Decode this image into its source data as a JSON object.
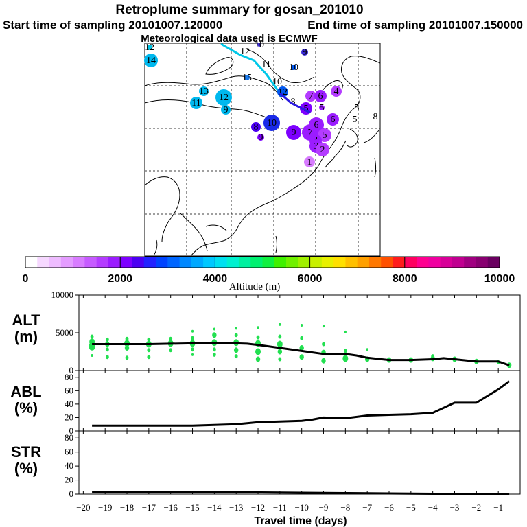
{
  "title": "Retroplume summary for gosan_201010",
  "start_label": "Start time of sampling 20101007.120000",
  "end_label": "End time of sampling 20101007.150000",
  "met_label": "Meteorological data used is ECMWF",
  "colors": {
    "trajectory": "#00c8e8",
    "mean_line": "#000000",
    "green_dots": "#22e050",
    "coast": "#000000"
  },
  "colorbar": {
    "label": "Altitude (m)",
    "ticks": [
      "0",
      "2000",
      "4000",
      "6000",
      "8000",
      "10000"
    ],
    "colors": [
      "#ffffff",
      "#f6d8ff",
      "#eebcff",
      "#e49cff",
      "#d87cff",
      "#c65bff",
      "#b43cff",
      "#9b1cff",
      "#7d00ff",
      "#4b00f2",
      "#2222ff",
      "#0044ff",
      "#0066ff",
      "#0088ff",
      "#00a8ff",
      "#00c8ff",
      "#00e0f0",
      "#00f0d0",
      "#00f0a0",
      "#00f070",
      "#10f040",
      "#40f000",
      "#70f000",
      "#a0f000",
      "#c8f000",
      "#e8f000",
      "#ffe000",
      "#ffc000",
      "#ffa000",
      "#ff7800",
      "#ff5000",
      "#ff1c1c",
      "#ff0060",
      "#ff0090",
      "#f000a0",
      "#d80098",
      "#c00090",
      "#a00080",
      "#880070",
      "#6a0060"
    ]
  },
  "map_points": [
    {
      "label": "12",
      "color": "#00c8e8",
      "r": 4
    },
    {
      "label": "14",
      "color": "#00b8ee",
      "r": 10
    },
    {
      "label": "13",
      "color": "#1a7cf0",
      "r": 5
    },
    {
      "label": "12",
      "color": "#00c8e8",
      "r": 0
    },
    {
      "label": "9",
      "color": "#3a2ad8",
      "r": 5
    },
    {
      "label": "10",
      "color": "#4030d8",
      "r": 3
    },
    {
      "label": "11",
      "color": "#00c8e8",
      "r": 0
    },
    {
      "label": "15",
      "color": "#1a7cf0",
      "r": 4
    },
    {
      "label": "10",
      "color": "#0058f0",
      "r": 4
    },
    {
      "label": "10",
      "color": "#0040ff",
      "r": 0
    },
    {
      "label": "13",
      "color": "#00b8ee",
      "r": 7
    },
    {
      "label": "12",
      "color": "#00b8ee",
      "r": 12
    },
    {
      "label": "11",
      "color": "#00b8ee",
      "r": 9
    },
    {
      "label": "9",
      "color": "#00b8ee",
      "r": 7
    },
    {
      "label": "12",
      "color": "#0058f0",
      "r": 8
    },
    {
      "label": "8",
      "color": "#0040ff",
      "r": 0
    },
    {
      "label": "7",
      "color": "#b43cff",
      "r": 8
    },
    {
      "label": "6",
      "color": "#9b1cff",
      "r": 9
    },
    {
      "label": "4",
      "color": "#b43cff",
      "r": 8
    },
    {
      "label": "5",
      "color": "#9b1cff",
      "r": 4
    },
    {
      "label": "5",
      "color": "#7d00ff",
      "r": 9
    },
    {
      "label": "6",
      "color": "#9b1cff",
      "r": 9
    },
    {
      "label": "10",
      "color": "#1a2ae8",
      "r": 12
    },
    {
      "label": "8",
      "color": "#4b00f2",
      "r": 7
    },
    {
      "label": "9",
      "color": "#7d00ff",
      "r": 5
    },
    {
      "label": "9",
      "color": "#7d00ff",
      "r": 11
    },
    {
      "label": "7",
      "color": "#9b1cff",
      "r": 12
    },
    {
      "label": "6",
      "color": "#9b1cff",
      "r": 11
    },
    {
      "label": "5",
      "color": "#b43cff",
      "r": 10
    },
    {
      "label": "4",
      "color": "#9b1cff",
      "r": 9
    },
    {
      "label": "3",
      "color": "#9b1cff",
      "r": 10
    },
    {
      "label": "2",
      "color": "#b43cff",
      "r": 10
    },
    {
      "label": "1",
      "color": "#d87cff",
      "r": 8
    },
    {
      "label": "5",
      "color": "#7d00ff",
      "r": 0
    },
    {
      "label": "5",
      "color": "#7d00ff",
      "r": 0
    },
    {
      "label": "8",
      "color": "#7d00ff",
      "r": 0
    }
  ],
  "chart_data": [
    {
      "type": "scatter+line",
      "panel_label_1": "ALT",
      "panel_label_2": "(m)",
      "ylim": [
        0,
        10000
      ],
      "ytick_labels": [
        "0",
        "5000",
        "10000"
      ],
      "xlim": [
        -20.2,
        0
      ],
      "mean_line": {
        "x": [
          -19.6,
          -19,
          -18,
          -17,
          -16,
          -15,
          -14,
          -13,
          -12.5,
          -12,
          -11,
          -10,
          -9.5,
          -9,
          -8,
          -7.5,
          -7,
          -6,
          -5,
          -4,
          -3.5,
          -3,
          -2,
          -1,
          -0.5
        ],
        "y": [
          3500,
          3500,
          3500,
          3500,
          3550,
          3600,
          3600,
          3600,
          3550,
          3400,
          3000,
          2600,
          2400,
          2200,
          2200,
          2000,
          1700,
          1400,
          1400,
          1500,
          1650,
          1500,
          1200,
          1200,
          700
        ]
      },
      "green_points": [
        {
          "x": -19.6,
          "y": 4500,
          "s": 3
        },
        {
          "x": -19.6,
          "y": 3800,
          "s": 5
        },
        {
          "x": -19.6,
          "y": 3200,
          "s": 6
        },
        {
          "x": -19.6,
          "y": 2000,
          "s": 2
        },
        {
          "x": -18.9,
          "y": 4100,
          "s": 3
        },
        {
          "x": -18.9,
          "y": 3500,
          "s": 4
        },
        {
          "x": -18.9,
          "y": 2800,
          "s": 3
        },
        {
          "x": -18.9,
          "y": 1800,
          "s": 3
        },
        {
          "x": -18,
          "y": 4200,
          "s": 3
        },
        {
          "x": -18,
          "y": 3600,
          "s": 5
        },
        {
          "x": -18,
          "y": 3000,
          "s": 4
        },
        {
          "x": -18,
          "y": 1700,
          "s": 3
        },
        {
          "x": -17,
          "y": 4100,
          "s": 3
        },
        {
          "x": -17,
          "y": 3500,
          "s": 5
        },
        {
          "x": -17,
          "y": 2700,
          "s": 3
        },
        {
          "x": -17,
          "y": 1800,
          "s": 3
        },
        {
          "x": -16,
          "y": 4200,
          "s": 3
        },
        {
          "x": -16,
          "y": 3600,
          "s": 5
        },
        {
          "x": -16,
          "y": 2700,
          "s": 3
        },
        {
          "x": -15,
          "y": 5200,
          "s": 2
        },
        {
          "x": -15,
          "y": 4300,
          "s": 3
        },
        {
          "x": -15,
          "y": 3600,
          "s": 5
        },
        {
          "x": -15,
          "y": 2800,
          "s": 3
        },
        {
          "x": -15,
          "y": 2100,
          "s": 2
        },
        {
          "x": -14,
          "y": 5500,
          "s": 2
        },
        {
          "x": -14,
          "y": 4700,
          "s": 4
        },
        {
          "x": -14,
          "y": 3700,
          "s": 5
        },
        {
          "x": -14,
          "y": 2800,
          "s": 3
        },
        {
          "x": -14,
          "y": 2100,
          "s": 3
        },
        {
          "x": -13,
          "y": 5600,
          "s": 2
        },
        {
          "x": -13,
          "y": 4700,
          "s": 3
        },
        {
          "x": -13,
          "y": 3700,
          "s": 5
        },
        {
          "x": -13,
          "y": 2700,
          "s": 4
        },
        {
          "x": -13,
          "y": 1900,
          "s": 3
        },
        {
          "x": -12,
          "y": 5700,
          "s": 2
        },
        {
          "x": -12,
          "y": 4400,
          "s": 3
        },
        {
          "x": -12,
          "y": 3600,
          "s": 5
        },
        {
          "x": -12,
          "y": 2500,
          "s": 5
        },
        {
          "x": -12,
          "y": 1500,
          "s": 4
        },
        {
          "x": -11,
          "y": 6100,
          "s": 2
        },
        {
          "x": -11,
          "y": 4500,
          "s": 3
        },
        {
          "x": -11,
          "y": 3500,
          "s": 5
        },
        {
          "x": -11,
          "y": 2500,
          "s": 4
        },
        {
          "x": -11,
          "y": 1500,
          "s": 3
        },
        {
          "x": -10,
          "y": 6000,
          "s": 2
        },
        {
          "x": -10,
          "y": 4300,
          "s": 3
        },
        {
          "x": -10,
          "y": 3000,
          "s": 4
        },
        {
          "x": -10,
          "y": 1800,
          "s": 4
        },
        {
          "x": -9,
          "y": 5900,
          "s": 2
        },
        {
          "x": -9,
          "y": 3500,
          "s": 3
        },
        {
          "x": -9,
          "y": 2400,
          "s": 4
        },
        {
          "x": -9,
          "y": 1300,
          "s": 4
        },
        {
          "x": -8,
          "y": 5100,
          "s": 2
        },
        {
          "x": -8,
          "y": 2600,
          "s": 3
        },
        {
          "x": -8,
          "y": 1600,
          "s": 5
        },
        {
          "x": -7,
          "y": 2800,
          "s": 2
        },
        {
          "x": -7,
          "y": 1500,
          "s": 4
        },
        {
          "x": -6,
          "y": 1400,
          "s": 4
        },
        {
          "x": -5,
          "y": 1400,
          "s": 4
        },
        {
          "x": -4,
          "y": 1900,
          "s": 3
        },
        {
          "x": -4,
          "y": 1600,
          "s": 4
        },
        {
          "x": -3,
          "y": 1500,
          "s": 4
        },
        {
          "x": -2,
          "y": 1200,
          "s": 4
        },
        {
          "x": -1,
          "y": 1100,
          "s": 3
        },
        {
          "x": -0.5,
          "y": 700,
          "s": 4
        }
      ]
    },
    {
      "type": "line",
      "panel_label_1": "ABL",
      "panel_label_2": "(%)",
      "ylim": [
        0,
        90
      ],
      "ytick_labels": [
        "0",
        "20",
        "40",
        "60",
        "80"
      ],
      "x": [
        -19.6,
        -19,
        -18,
        -17,
        -16,
        -15,
        -14,
        -13,
        -12,
        -11,
        -10,
        -9.5,
        -9,
        -8,
        -7,
        -6,
        -5,
        -4,
        -3,
        -2,
        -1,
        -0.5
      ],
      "y": [
        8,
        8,
        8,
        8,
        8,
        8,
        9,
        10,
        13,
        14,
        15,
        17,
        20,
        19,
        23,
        24,
        25,
        27,
        42,
        42,
        62,
        74
      ]
    },
    {
      "type": "line",
      "panel_label_1": "STR",
      "panel_label_2": "(%)",
      "ylim": [
        0,
        90
      ],
      "ytick_labels": [
        "0",
        "20",
        "40",
        "60",
        "80"
      ],
      "x": [
        -19.6,
        -18,
        -16,
        -14,
        -12,
        -10,
        -8,
        -6,
        -4,
        -2,
        -0.5
      ],
      "y": [
        3,
        3,
        3,
        3,
        2.5,
        2,
        1.5,
        1,
        0.5,
        0.2,
        0
      ]
    }
  ],
  "x_axis": {
    "label": "Travel time (days)",
    "tick_labels": [
      "−20",
      "−19",
      "−18",
      "−17",
      "−16",
      "−15",
      "−14",
      "−13",
      "−12",
      "−11",
      "−10",
      "−9",
      "−8",
      "−7",
      "−6",
      "−5",
      "−4",
      "−3",
      "−2",
      "−1"
    ]
  }
}
